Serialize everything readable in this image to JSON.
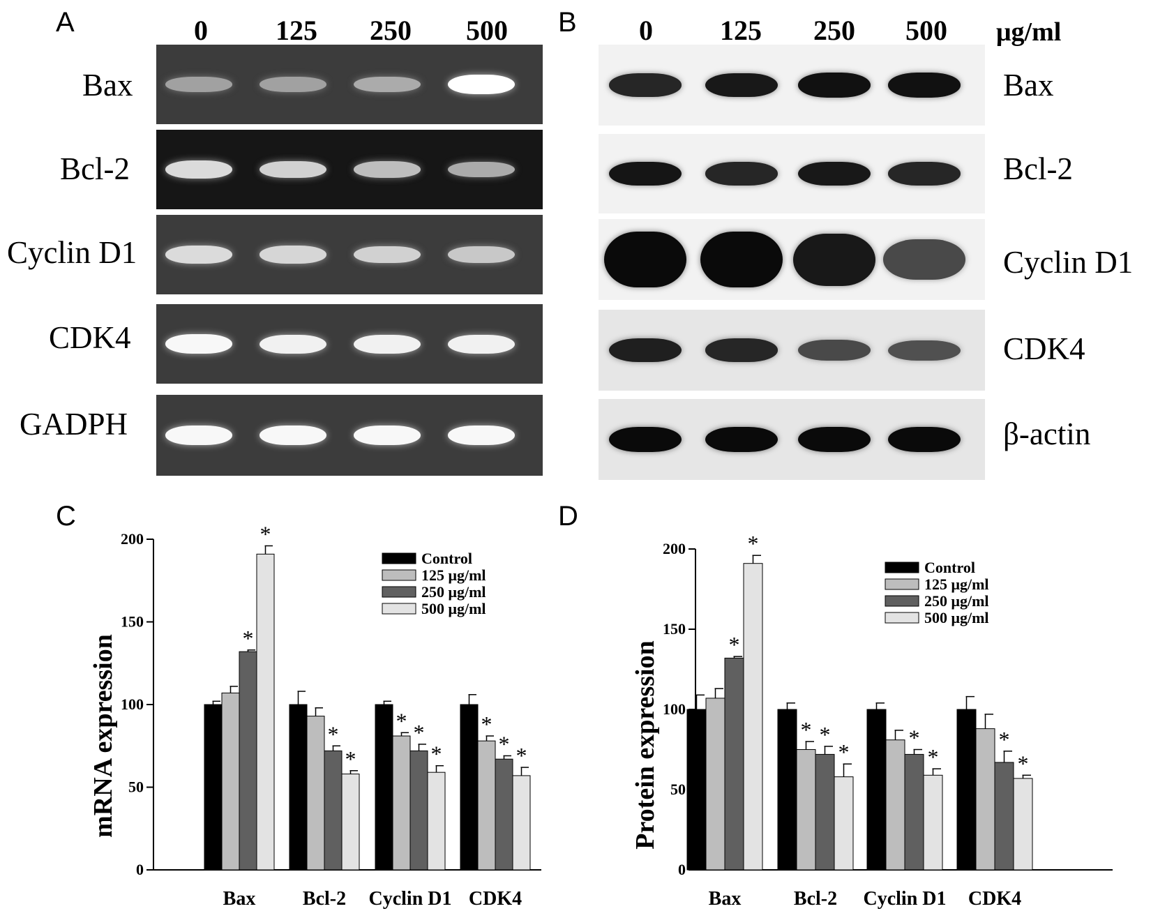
{
  "panels": {
    "A": {
      "letter": "A",
      "lanes": [
        "0",
        "125",
        "250",
        "500"
      ],
      "rows": [
        {
          "label": "Bax",
          "intensity": [
            0.35,
            0.35,
            0.42,
            1.0
          ]
        },
        {
          "label": "Bcl-2",
          "intensity": [
            0.75,
            0.68,
            0.55,
            0.42
          ]
        },
        {
          "label": "Cyclin D1",
          "intensity": [
            0.75,
            0.72,
            0.68,
            0.62
          ]
        },
        {
          "label": "CDK4",
          "intensity": [
            0.95,
            0.9,
            0.9,
            0.9
          ]
        },
        {
          "label": "GADPH",
          "intensity": [
            0.95,
            0.95,
            0.95,
            0.95
          ]
        }
      ]
    },
    "B": {
      "letter": "B",
      "lanes": [
        "0",
        "125",
        "250",
        "500"
      ],
      "unit": "μg/ml",
      "rows": [
        {
          "label": "Bax",
          "intensity": [
            0.8,
            0.9,
            0.95,
            0.95
          ]
        },
        {
          "label": "Bcl-2",
          "intensity": [
            0.92,
            0.8,
            0.9,
            0.8
          ]
        },
        {
          "label": "Cyclin D1",
          "intensity": [
            1.0,
            1.0,
            0.9,
            0.55
          ]
        },
        {
          "label": "CDK4",
          "intensity": [
            0.85,
            0.8,
            0.55,
            0.5
          ]
        },
        {
          "label": "β-actin",
          "intensity": [
            1.0,
            1.0,
            1.0,
            1.0
          ]
        }
      ]
    },
    "C": {
      "letter": "C"
    },
    "D": {
      "letter": "D"
    }
  },
  "chart_data": [
    {
      "panel": "C",
      "type": "bar",
      "categories": [
        "Bax",
        "Bcl-2",
        "Cyclin D1",
        "CDK4"
      ],
      "ylabel": "mRNA expression",
      "xlabel": "",
      "ylim": [
        0,
        200
      ],
      "yticks": [
        0,
        50,
        100,
        150,
        200
      ],
      "legend": "top-right",
      "series": [
        {
          "name": "Control",
          "color": "#000000",
          "values": [
            100,
            100,
            100,
            100
          ],
          "errors": [
            2,
            8,
            2,
            6
          ],
          "significant": [
            false,
            false,
            false,
            false
          ]
        },
        {
          "name": "125 μg/ml",
          "color": "#bdbdbd",
          "values": [
            107,
            93,
            81,
            78
          ],
          "errors": [
            4,
            5,
            2,
            3
          ],
          "significant": [
            false,
            false,
            true,
            true
          ]
        },
        {
          "name": "250 μg/ml",
          "color": "#606060",
          "values": [
            132,
            72,
            72,
            67
          ],
          "errors": [
            1,
            3,
            4,
            2
          ],
          "significant": [
            true,
            true,
            true,
            true
          ]
        },
        {
          "name": "500 μg/ml",
          "color": "#e3e3e3",
          "values": [
            191,
            58,
            59,
            57
          ],
          "errors": [
            5,
            2,
            4,
            5
          ],
          "significant": [
            true,
            true,
            true,
            true
          ]
        }
      ],
      "annotation": "*"
    },
    {
      "panel": "D",
      "type": "bar",
      "categories": [
        "Bax",
        "Bcl-2",
        "Cyclin D1",
        "CDK4"
      ],
      "ylabel": "Protein expression",
      "xlabel": "",
      "ylim": [
        0,
        200
      ],
      "yticks": [
        0,
        50,
        100,
        150,
        200
      ],
      "legend": "top-right",
      "series": [
        {
          "name": "Control",
          "color": "#000000",
          "values": [
            100,
            100,
            100,
            100
          ],
          "errors": [
            9,
            4,
            4,
            8
          ],
          "significant": [
            false,
            false,
            false,
            false
          ]
        },
        {
          "name": "125 μg/ml",
          "color": "#bdbdbd",
          "values": [
            107,
            75,
            81,
            88
          ],
          "errors": [
            6,
            5,
            6,
            9
          ],
          "significant": [
            false,
            true,
            false,
            false
          ]
        },
        {
          "name": "250 μg/ml",
          "color": "#606060",
          "values": [
            132,
            72,
            72,
            67
          ],
          "errors": [
            1,
            5,
            3,
            7
          ],
          "significant": [
            true,
            true,
            true,
            true
          ]
        },
        {
          "name": "500 μg/ml",
          "color": "#e3e3e3",
          "values": [
            191,
            58,
            59,
            57
          ],
          "errors": [
            5,
            8,
            4,
            2
          ],
          "significant": [
            true,
            true,
            true,
            true
          ]
        }
      ],
      "annotation": "*"
    }
  ]
}
